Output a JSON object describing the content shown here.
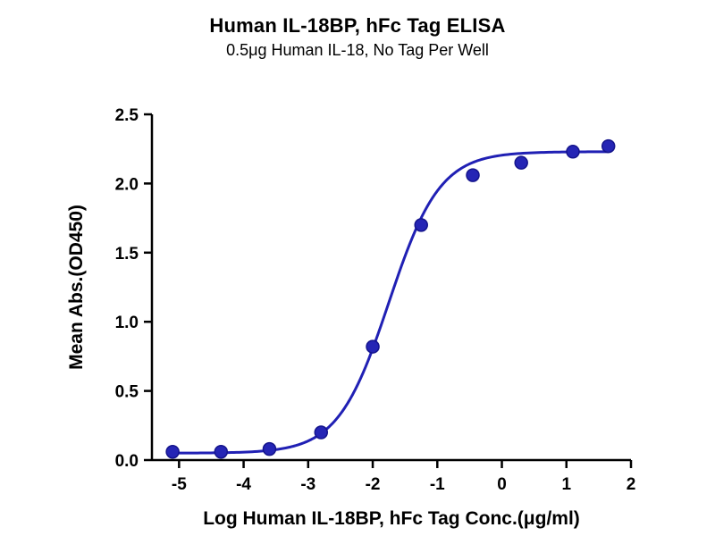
{
  "chart_data": {
    "type": "scatter",
    "title": "Human IL-18BP, hFc Tag ELISA",
    "subtitle": "0.5μg Human IL-18, No Tag Per Well",
    "xlabel": "Log Human IL-18BP, hFc Tag Conc.(μg/ml)",
    "ylabel": "Mean Abs.(OD450)",
    "xlim": [
      -5.42,
      2.0
    ],
    "ylim": [
      0,
      2.5
    ],
    "x_ticks": [
      -5,
      -4,
      -3,
      -2,
      -1,
      0,
      1,
      2
    ],
    "x_tick_labels": [
      "-5",
      "-4",
      "-3",
      "-2",
      "-1",
      "0",
      "1",
      "2"
    ],
    "y_ticks": [
      0.0,
      0.5,
      1.0,
      1.5,
      2.0,
      2.5
    ],
    "y_tick_labels": [
      "0.0",
      "0.5",
      "1.0",
      "1.5",
      "2.0",
      "2.5"
    ],
    "grid": false,
    "legend": null,
    "points": [
      {
        "x": -5.1,
        "y": 0.06
      },
      {
        "x": -4.35,
        "y": 0.06
      },
      {
        "x": -3.6,
        "y": 0.08
      },
      {
        "x": -2.8,
        "y": 0.2
      },
      {
        "x": -2.0,
        "y": 0.82
      },
      {
        "x": -1.25,
        "y": 1.7
      },
      {
        "x": -0.45,
        "y": 2.06
      },
      {
        "x": 0.3,
        "y": 2.15
      },
      {
        "x": 1.1,
        "y": 2.23
      },
      {
        "x": 1.65,
        "y": 2.27
      }
    ],
    "fit": {
      "model": "4PL",
      "bottom": 0.05,
      "top": 2.23,
      "logEC50": -1.75,
      "hill": 1.1,
      "x_start": -5.15,
      "x_end": 1.68
    },
    "colors": {
      "curve": "#2020b4",
      "point_fill": "#2525b5",
      "point_edge": "#14148c",
      "axis": "#000000",
      "text": "#000000"
    }
  }
}
